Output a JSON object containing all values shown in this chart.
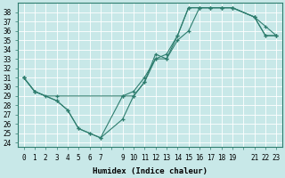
{
  "xlabel": "Humidex (Indice chaleur)",
  "bg_color": "#c8e8e8",
  "grid_color": "#ffffff",
  "line_color": "#2e7d6e",
  "xlim": [
    -0.5,
    23.5
  ],
  "ylim": [
    23.5,
    39.0
  ],
  "yticks": [
    24,
    25,
    26,
    27,
    28,
    29,
    30,
    31,
    32,
    33,
    34,
    35,
    36,
    37,
    38
  ],
  "xtick_positions": [
    0,
    1,
    2,
    3,
    4,
    5,
    6,
    7,
    9,
    10,
    11,
    12,
    13,
    14,
    15,
    16,
    17,
    18,
    19,
    21,
    22,
    23
  ],
  "xtick_labels": [
    "0",
    "1",
    "2",
    "3",
    "4",
    "5",
    "6",
    "7",
    "9",
    "10",
    "11",
    "12",
    "13",
    "14",
    "15",
    "16",
    "17",
    "18",
    "19",
    "21",
    "22",
    "23"
  ],
  "line1_x": [
    0,
    1,
    2,
    3,
    9,
    10,
    11,
    12,
    13,
    14,
    15,
    16,
    17,
    18,
    19,
    21,
    22,
    23
  ],
  "line1_y": [
    31,
    29.5,
    29,
    29,
    29,
    29.5,
    31,
    33,
    33.5,
    35.5,
    38.5,
    38.5,
    38.5,
    38.5,
    38.5,
    37.5,
    35.5,
    35.5
  ],
  "line2_x": [
    0,
    1,
    3,
    4,
    5,
    6,
    7,
    9,
    10,
    11,
    12,
    13,
    14,
    15,
    16,
    17,
    18,
    19,
    21,
    22,
    23
  ],
  "line2_y": [
    31,
    29.5,
    28.5,
    27.5,
    25.5,
    25.0,
    24.5,
    29,
    29,
    30.5,
    33.5,
    33,
    35.5,
    38.5,
    38.5,
    38.5,
    38.5,
    38.5,
    37.5,
    35.5,
    35.5
  ],
  "line3_x": [
    0,
    1,
    3,
    4,
    5,
    6,
    7,
    9,
    10,
    11,
    12,
    13,
    14,
    15,
    16,
    17,
    18,
    19,
    21,
    22,
    23
  ],
  "line3_y": [
    31,
    29.5,
    28.5,
    27.5,
    25.5,
    25.0,
    24.5,
    26.5,
    29,
    30.5,
    33,
    33,
    35,
    36,
    38.5,
    38.5,
    38.5,
    38.5,
    37.5,
    36.5,
    35.5
  ],
  "tick_fontsize": 5.5,
  "xlabel_fontsize": 6.5
}
